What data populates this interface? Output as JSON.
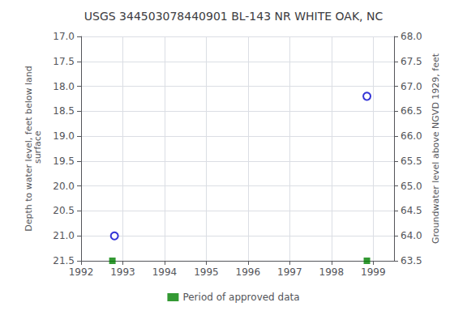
{
  "chart_data": {
    "type": "scatter",
    "title": "USGS 344503078440901 BL-143 NR WHITE OAK, NC",
    "ylabel": "Depth to water level, feet below land\n surface",
    "y2label": "Groundwater level above NGVD 1929, feet",
    "xlim": [
      1992,
      1999.5
    ],
    "xticks": [
      1992,
      1993,
      1994,
      1995,
      1996,
      1997,
      1998,
      1999
    ],
    "ylim": [
      21.5,
      17.0
    ],
    "yticks": [
      {
        "value": 17,
        "label": "17.0"
      },
      17.5,
      {
        "value": 18,
        "label": "18.0"
      },
      18.5,
      {
        "value": 19,
        "label": "19.0"
      },
      19.5,
      {
        "value": 20,
        "label": "20.0"
      },
      20.5,
      {
        "value": 21,
        "label": "21.0"
      },
      21.5
    ],
    "y2lim": [
      63.5,
      68.0
    ],
    "y2ticks": [
      {
        "value": 68,
        "label": "68.0"
      },
      67.5,
      {
        "value": 67,
        "label": "67.0"
      },
      66.5,
      {
        "value": 66,
        "label": "66.0"
      },
      65.5,
      {
        "value": 65,
        "label": "65.0"
      },
      64.5,
      {
        "value": 64,
        "label": "64.0"
      },
      63.5
    ],
    "grid": true,
    "legend": "bottom",
    "series": [
      {
        "x": [
          1992.8,
          1998.85
        ],
        "values": [
          21.0,
          18.2
        ],
        "color": "#0000cc",
        "marker": "open_circle"
      },
      {
        "name": "Period of approved data",
        "x": [
          1992.75,
          1998.85
        ],
        "values": [
          21.5,
          21.5
        ],
        "color": "#008000",
        "marker": "square"
      }
    ]
  }
}
